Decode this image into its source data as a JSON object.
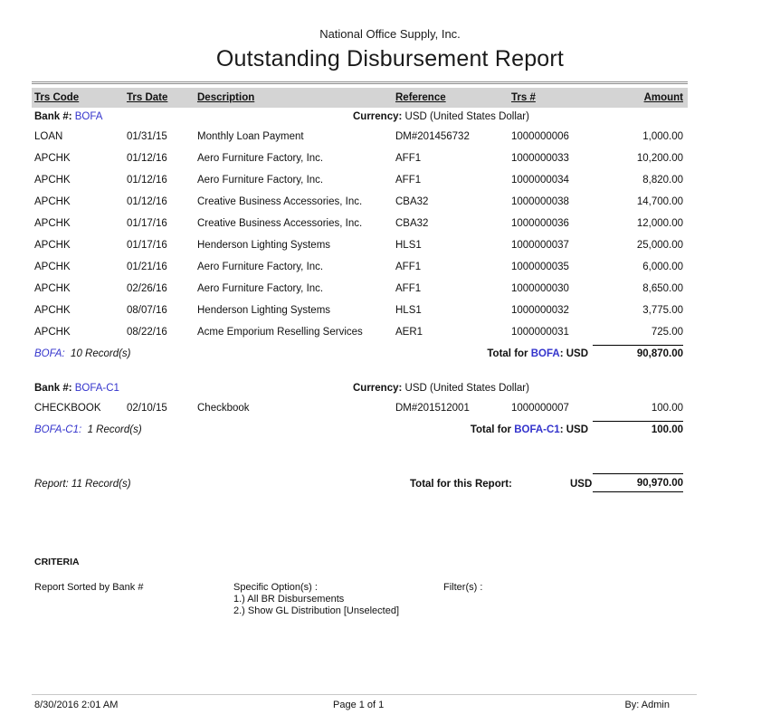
{
  "header": {
    "company": "National Office Supply, Inc.",
    "title": "Outstanding Disbursement Report"
  },
  "table": {
    "columns": [
      "Trs Code",
      "Trs Date",
      "Description",
      "Reference",
      "Trs #",
      "Amount"
    ]
  },
  "sections": [
    {
      "bank_label": "Bank #:",
      "bank_code": "BOFA",
      "currency_label": "Currency:",
      "currency_value": "USD (United States Dollar)",
      "rows": [
        {
          "trs_code": "LOAN",
          "trs_date": "01/31/15",
          "description": "Monthly Loan Payment",
          "reference": "DM#201456732",
          "trs_num": "1000000006",
          "amount": "1,000.00"
        },
        {
          "trs_code": "APCHK",
          "trs_date": "01/12/16",
          "description": "Aero Furniture Factory, Inc.",
          "reference": "AFF1",
          "trs_num": "1000000033",
          "amount": "10,200.00"
        },
        {
          "trs_code": "APCHK",
          "trs_date": "01/12/16",
          "description": "Aero Furniture Factory, Inc.",
          "reference": "AFF1",
          "trs_num": "1000000034",
          "amount": "8,820.00"
        },
        {
          "trs_code": "APCHK",
          "trs_date": "01/12/16",
          "description": "Creative Business Accessories, Inc.",
          "reference": "CBA32",
          "trs_num": "1000000038",
          "amount": "14,700.00"
        },
        {
          "trs_code": "APCHK",
          "trs_date": "01/17/16",
          "description": "Creative Business Accessories, Inc.",
          "reference": "CBA32",
          "trs_num": "1000000036",
          "amount": "12,000.00"
        },
        {
          "trs_code": "APCHK",
          "trs_date": "01/17/16",
          "description": "Henderson Lighting Systems",
          "reference": "HLS1",
          "trs_num": "1000000037",
          "amount": "25,000.00"
        },
        {
          "trs_code": "APCHK",
          "trs_date": "01/21/16",
          "description": "Aero Furniture Factory, Inc.",
          "reference": "AFF1",
          "trs_num": "1000000035",
          "amount": "6,000.00"
        },
        {
          "trs_code": "APCHK",
          "trs_date": "02/26/16",
          "description": "Aero Furniture Factory, Inc.",
          "reference": "AFF1",
          "trs_num": "1000000030",
          "amount": "8,650.00"
        },
        {
          "trs_code": "APCHK",
          "trs_date": "08/07/16",
          "description": "Henderson Lighting Systems",
          "reference": "HLS1",
          "trs_num": "1000000032",
          "amount": "3,775.00"
        },
        {
          "trs_code": "APCHK",
          "trs_date": "08/22/16",
          "description": "Acme Emporium Reselling Services",
          "reference": "AER1",
          "trs_num": "1000000031",
          "amount": "725.00"
        }
      ],
      "records": "10 Record(s)",
      "total_prefix": "Total for",
      "total_suffix": ": USD",
      "total_amount": "90,870.00"
    },
    {
      "bank_label": "Bank #:",
      "bank_code": "BOFA-C1",
      "currency_label": "Currency:",
      "currency_value": "USD (United States Dollar)",
      "rows": [
        {
          "trs_code": "CHECKBOOK",
          "trs_date": "02/10/15",
          "description": "Checkbook",
          "reference": "DM#201512001",
          "trs_num": "1000000007",
          "amount": "100.00"
        }
      ],
      "records": "1 Record(s)",
      "total_prefix": "Total for",
      "total_suffix": ": USD",
      "total_amount": "100.00"
    }
  ],
  "report_summary": {
    "records": "Report: 11 Record(s)",
    "total_label": "Total for this Report:",
    "currency": "USD",
    "total_amount": "90,970.00"
  },
  "criteria": {
    "heading": "CRITERIA",
    "sorted_by": "Report Sorted by Bank #",
    "specific_options_label": "Specific Option(s) :",
    "options": [
      "1.) All BR Disbursements",
      "2.) Show GL Distribution [Unselected]"
    ],
    "filters_label": "Filter(s) :"
  },
  "footer": {
    "datetime": "8/30/2016 2:01 AM",
    "page": "Page 1 of 1",
    "by": "By: Admin"
  },
  "colors": {
    "link_blue": "#3333cc",
    "header_bar_gray": "#d4d4d4"
  }
}
